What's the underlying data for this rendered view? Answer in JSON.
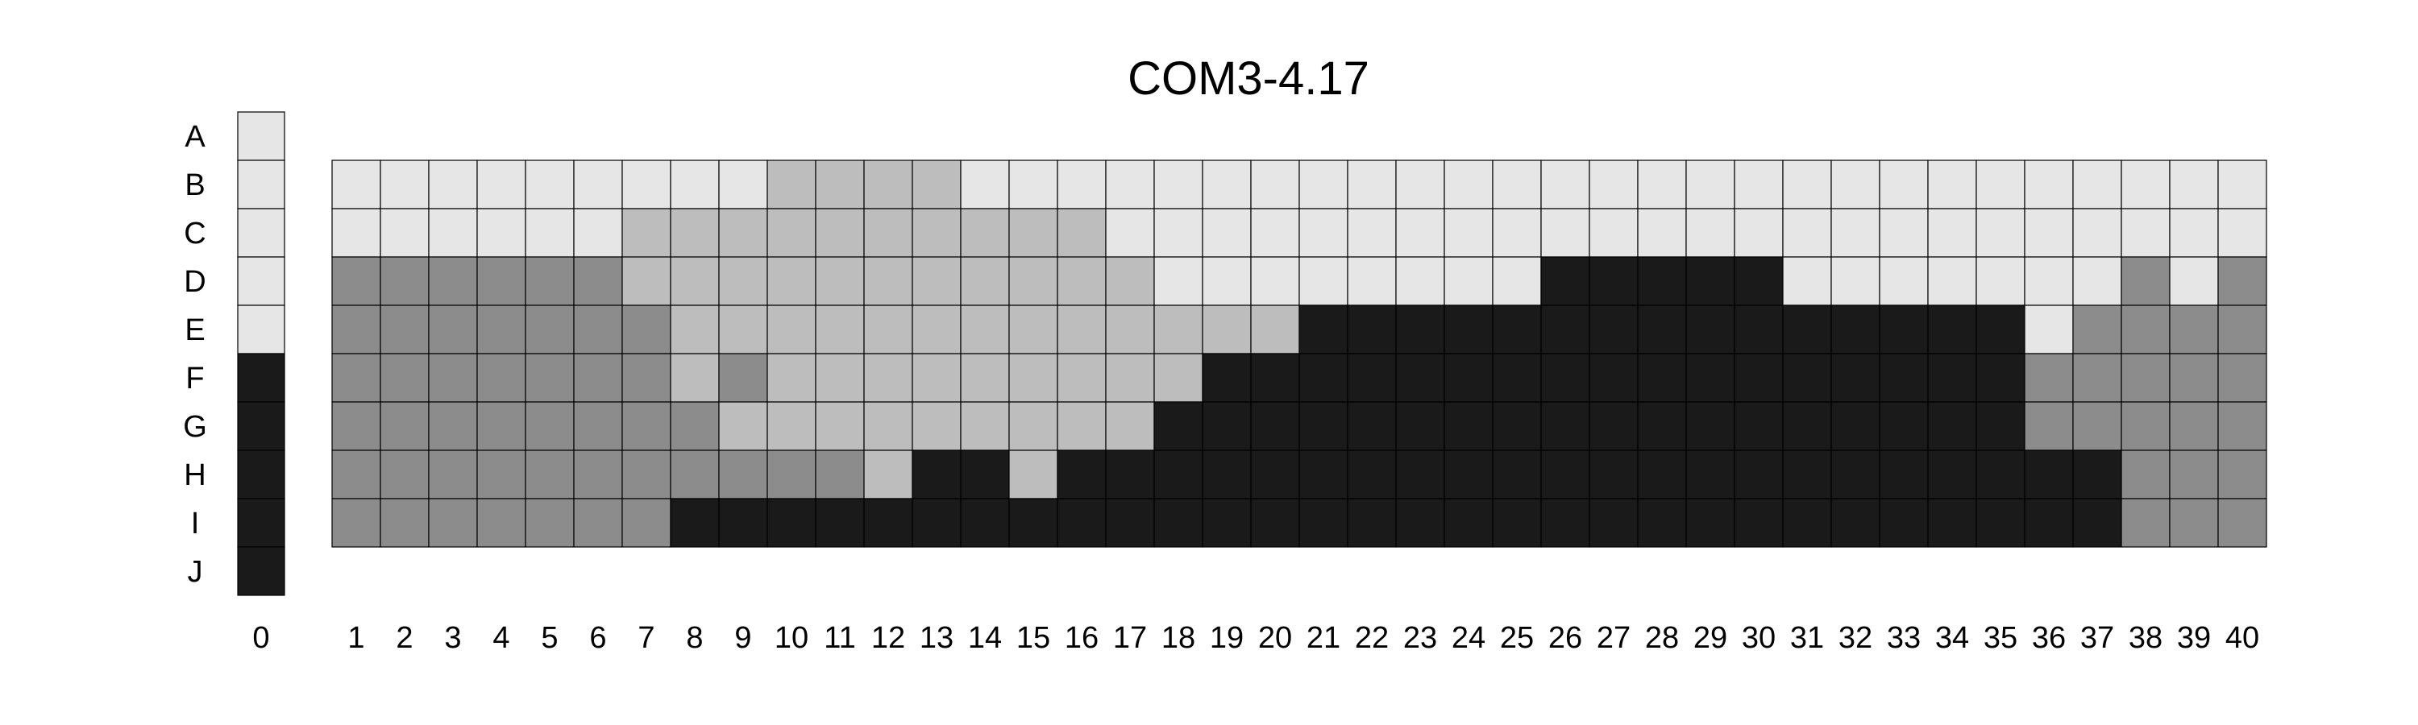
{
  "chart_data": {
    "type": "heatmap",
    "title": "COM3-4.17",
    "row_labels": [
      "A",
      "B",
      "C",
      "D",
      "E",
      "F",
      "G",
      "H",
      "I",
      "J"
    ],
    "column_labels": [
      "0",
      "1",
      "2",
      "3",
      "4",
      "5",
      "6",
      "7",
      "8",
      "9",
      "10",
      "11",
      "12",
      "13",
      "14",
      "15",
      "16",
      "17",
      "18",
      "19",
      "20",
      "21",
      "22",
      "23",
      "24",
      "25",
      "26",
      "27",
      "28",
      "29",
      "30",
      "31",
      "32",
      "33",
      "34",
      "35",
      "36",
      "37",
      "38",
      "39",
      "40"
    ],
    "level_colors": {
      "1": "#e6e6e6",
      "2": "#bdbdbd",
      "3": "#8c8c8c",
      "4": "#1a1a1a"
    },
    "reference_column": {
      "column": "0",
      "rows": [
        "A",
        "B",
        "C",
        "D",
        "E",
        "F",
        "G",
        "H",
        "I",
        "J"
      ],
      "values": [
        1,
        1,
        1,
        1,
        1,
        4,
        4,
        4,
        4,
        4
      ]
    },
    "grid": {
      "rows": [
        "B",
        "C",
        "D",
        "E",
        "F",
        "G",
        "H",
        "I"
      ],
      "columns": [
        "1",
        "2",
        "3",
        "4",
        "5",
        "6",
        "7",
        "8",
        "9",
        "10",
        "11",
        "12",
        "13",
        "14",
        "15",
        "16",
        "17",
        "18",
        "19",
        "20",
        "21",
        "22",
        "23",
        "24",
        "25",
        "26",
        "27",
        "28",
        "29",
        "30",
        "31",
        "32",
        "33",
        "34",
        "35",
        "36",
        "37",
        "38",
        "39",
        "40"
      ],
      "values": [
        [
          1,
          1,
          1,
          1,
          1,
          1,
          1,
          1,
          1,
          2,
          2,
          2,
          2,
          1,
          1,
          1,
          1,
          1,
          1,
          1,
          1,
          1,
          1,
          1,
          1,
          1,
          1,
          1,
          1,
          1,
          1,
          1,
          1,
          1,
          1,
          1,
          1,
          1,
          1,
          1
        ],
        [
          1,
          1,
          1,
          1,
          1,
          1,
          2,
          2,
          2,
          2,
          2,
          2,
          2,
          2,
          2,
          2,
          1,
          1,
          1,
          1,
          1,
          1,
          1,
          1,
          1,
          1,
          1,
          1,
          1,
          1,
          1,
          1,
          1,
          1,
          1,
          1,
          1,
          1,
          1,
          1
        ],
        [
          3,
          3,
          3,
          3,
          3,
          3,
          2,
          2,
          2,
          2,
          2,
          2,
          2,
          2,
          2,
          2,
          2,
          1,
          1,
          1,
          1,
          1,
          1,
          1,
          1,
          4,
          4,
          4,
          4,
          4,
          1,
          1,
          1,
          1,
          1,
          1,
          1,
          3,
          1,
          3
        ],
        [
          3,
          3,
          3,
          3,
          3,
          3,
          3,
          2,
          2,
          2,
          2,
          2,
          2,
          2,
          2,
          2,
          2,
          2,
          2,
          2,
          4,
          4,
          4,
          4,
          4,
          4,
          4,
          4,
          4,
          4,
          4,
          4,
          4,
          4,
          4,
          1,
          3,
          3,
          3,
          3
        ],
        [
          3,
          3,
          3,
          3,
          3,
          3,
          3,
          2,
          3,
          2,
          2,
          2,
          2,
          2,
          2,
          2,
          2,
          2,
          4,
          4,
          4,
          4,
          4,
          4,
          4,
          4,
          4,
          4,
          4,
          4,
          4,
          4,
          4,
          4,
          4,
          3,
          3,
          3,
          3,
          3
        ],
        [
          3,
          3,
          3,
          3,
          3,
          3,
          3,
          3,
          2,
          2,
          2,
          2,
          2,
          2,
          2,
          2,
          2,
          4,
          4,
          4,
          4,
          4,
          4,
          4,
          4,
          4,
          4,
          4,
          4,
          4,
          4,
          4,
          4,
          4,
          4,
          3,
          3,
          3,
          3,
          3
        ],
        [
          3,
          3,
          3,
          3,
          3,
          3,
          3,
          3,
          3,
          3,
          3,
          2,
          4,
          4,
          2,
          4,
          4,
          4,
          4,
          4,
          4,
          4,
          4,
          4,
          4,
          4,
          4,
          4,
          4,
          4,
          4,
          4,
          4,
          4,
          4,
          4,
          4,
          3,
          3,
          3
        ],
        [
          3,
          3,
          3,
          3,
          3,
          3,
          3,
          4,
          4,
          4,
          4,
          4,
          4,
          4,
          4,
          4,
          4,
          4,
          4,
          4,
          4,
          4,
          4,
          4,
          4,
          4,
          4,
          4,
          4,
          4,
          4,
          4,
          4,
          4,
          4,
          4,
          4,
          3,
          3,
          3
        ]
      ]
    }
  }
}
